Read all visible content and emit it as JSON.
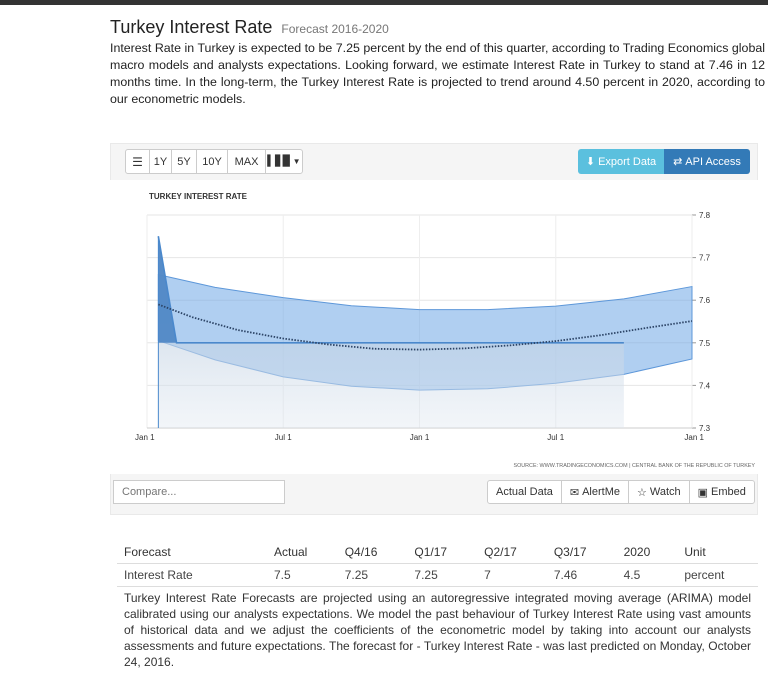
{
  "header": {
    "title": "Turkey Interest Rate",
    "subtitle": "Forecast 2016-2020",
    "intro": "Interest Rate in Turkey is expected to be 7.25 percent by the end of this quarter, according to Trading Economics global macro models and analysts expectations. Looking forward, we estimate Interest Rate in Turkey to stand at 7.46 in 12 months time. In the long-term, the Turkey Interest Rate is projected to trend around 4.50 percent in 2020, according to our econometric models."
  },
  "toolbar": {
    "range_buttons": [
      "1Y",
      "5Y",
      "10Y",
      "MAX"
    ],
    "export_label": "Export Data",
    "api_label": "API Access"
  },
  "chart_data": {
    "type": "area",
    "title": "TURKEY INTEREST RATE",
    "x_ticks": [
      "Jan 1",
      "Jul 1",
      "Jan 1",
      "Jul 1",
      "Jan 1"
    ],
    "y_ticks": [
      "7.8",
      "7.7",
      "7.6",
      "7.5",
      "7.4",
      "7.3"
    ],
    "ylim": [
      7.3,
      7.8
    ],
    "xlim_months": [
      0,
      24
    ],
    "series": [
      {
        "kind": "actual",
        "color": "#4a88cc",
        "points": [
          [
            0.5,
            7.75
          ],
          [
            1.3,
            7.5
          ],
          [
            10,
            7.5
          ],
          [
            16,
            7.5
          ],
          [
            21,
            7.5
          ]
        ]
      },
      {
        "kind": "forecast",
        "color": "#2c4466",
        "points": [
          [
            0.5,
            7.59
          ],
          [
            2,
            7.56
          ],
          [
            4,
            7.53
          ],
          [
            6,
            7.51
          ],
          [
            8,
            7.496
          ],
          [
            10,
            7.486
          ],
          [
            12,
            7.484
          ],
          [
            14,
            7.487
          ],
          [
            16,
            7.494
          ],
          [
            18,
            7.504
          ],
          [
            20,
            7.518
          ],
          [
            22,
            7.535
          ],
          [
            24,
            7.551
          ]
        ]
      }
    ],
    "band": {
      "color": "#6fa7e6",
      "upper": [
        [
          0.5,
          7.66
        ],
        [
          3,
          7.63
        ],
        [
          6,
          7.606
        ],
        [
          9,
          7.587
        ],
        [
          12,
          7.578
        ],
        [
          15,
          7.578
        ],
        [
          18,
          7.586
        ],
        [
          21,
          7.603
        ],
        [
          24,
          7.632
        ]
      ],
      "lower": [
        [
          0.5,
          7.505
        ],
        [
          3,
          7.46
        ],
        [
          6,
          7.42
        ],
        [
          9,
          7.398
        ],
        [
          12,
          7.389
        ],
        [
          15,
          7.392
        ],
        [
          18,
          7.405
        ],
        [
          21,
          7.426
        ],
        [
          24,
          7.462
        ]
      ]
    },
    "source": "SOURCE: WWW.TRADINGECONOMICS.COM | CENTRAL BANK OF THE REPUBLIC OF TURKEY"
  },
  "controls": {
    "compare_placeholder": "Compare...",
    "actual_data": "Actual Data",
    "alert_me": "AlertMe",
    "watch": "Watch",
    "embed": "Embed"
  },
  "forecast_table": {
    "headers": [
      "Forecast",
      "Actual",
      "Q4/16",
      "Q1/17",
      "Q2/17",
      "Q3/17",
      "2020",
      "Unit"
    ],
    "row": [
      "Interest Rate",
      "7.5",
      "7.25",
      "7.25",
      "7",
      "7.46",
      "4.5",
      "percent"
    ]
  },
  "note": "Turkey Interest Rate Forecasts are projected using an autoregressive integrated moving average (ARIMA) model calibrated using our analysts expectations. We model the past behaviour of Turkey Interest Rate using vast amounts of historical data and we adjust the coefficients of the econometric model by taking into account our analysts assessments and future expectations. The forecast for - Turkey Interest Rate - was last predicted on Monday, October 24, 2016."
}
